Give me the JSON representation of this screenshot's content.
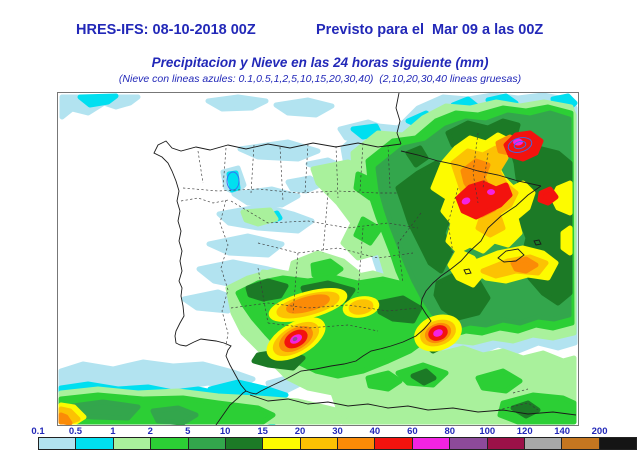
{
  "header": {
    "model_run": "HRES-IFS: 08-10-2018 00Z",
    "valid_for": "Previsto para el  Mar 09 a las 00Z",
    "title": "Precipitacion y Nieve en las 24 horas siguiente (mm)",
    "subtitle": "(Nieve con lineas azules: 0.1,0.5,1,2,5,10,15,20,30,40)  (2,10,20,30,40 lineas gruesas)",
    "text_color": "#2228b8"
  },
  "map": {
    "region": "Iberian Peninsula",
    "content": "Filled precipitation contours (mm/24h) with coastlines, dashed administrative borders and thin blue snow contour lines"
  },
  "legend": {
    "unit": "mm",
    "entries": [
      {
        "label": "0.1",
        "color": "#b2e3f0"
      },
      {
        "label": "0.5",
        "color": "#00dff0"
      },
      {
        "label": "1",
        "color": "#a9f19c"
      },
      {
        "label": "2",
        "color": "#2ccf35"
      },
      {
        "label": "5",
        "color": "#33a64c"
      },
      {
        "label": "10",
        "color": "#1c7a26"
      },
      {
        "label": "15",
        "color": "#fdfb00"
      },
      {
        "label": "20",
        "color": "#fcc203"
      },
      {
        "label": "30",
        "color": "#fb8b07"
      },
      {
        "label": "40",
        "color": "#f3130e"
      },
      {
        "label": "60",
        "color": "#f323e2"
      },
      {
        "label": "80",
        "color": "#8d4a9a"
      },
      {
        "label": "100",
        "color": "#9b1148"
      },
      {
        "label": "120",
        "color": "#a8a8a8"
      },
      {
        "label": "140",
        "color": "#c57620"
      },
      {
        "label": "200",
        "color": "#151515"
      }
    ]
  }
}
